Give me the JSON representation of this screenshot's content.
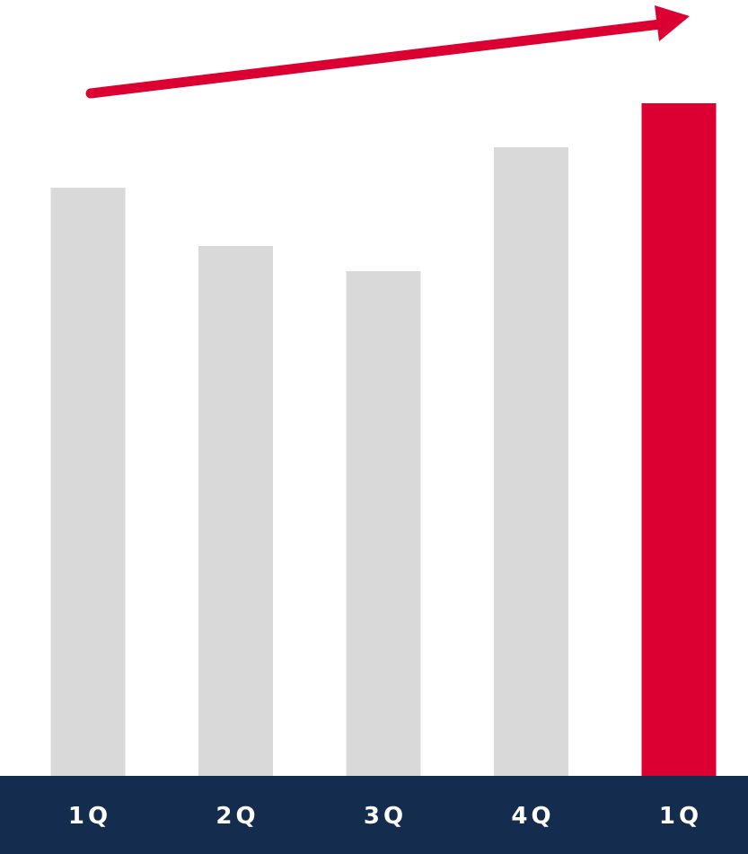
{
  "chart_data": {
    "type": "bar",
    "title": "",
    "xlabel": "",
    "ylabel": "",
    "categories": [
      "1Q",
      "2Q",
      "3Q",
      "4Q",
      "1Q"
    ],
    "values": [
      655,
      590,
      562,
      700,
      749
    ],
    "ylim": [
      0,
      800
    ],
    "grid": false,
    "legend": "none",
    "annotations": [
      {
        "type": "trend-arrow",
        "direction": "up-right"
      }
    ]
  },
  "colors": {
    "bar_default": "#d9d9d9",
    "bar_highlight": "#dc0032",
    "axis_band": "#142c4e",
    "tick_text": "#ffffff",
    "arrow": "#dc0032"
  },
  "highlight_index": 4
}
